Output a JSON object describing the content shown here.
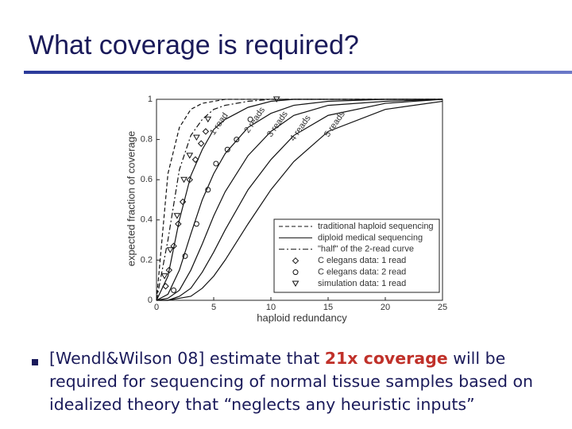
{
  "slide": {
    "title": "What coverage is required?",
    "bullet": [
      "[Wendl&Wilson 08] estimate that ",
      "21x coverage",
      " will be required for sequencing of normal tissue samples based on idealized theory that “neglects any heuristic inputs”"
    ]
  },
  "chart_data": {
    "type": "line",
    "xlabel": "haploid redundancy",
    "ylabel": "expected fraction of coverage",
    "xlim": [
      0,
      25
    ],
    "ylim": [
      0,
      1
    ],
    "xticks": [
      0,
      5,
      10,
      15,
      20,
      25
    ],
    "yticks": [
      0,
      0.2,
      0.4,
      0.6,
      0.8,
      1
    ],
    "x": [
      0,
      1,
      2,
      3,
      4,
      5,
      6,
      8,
      10,
      12,
      15,
      20,
      25
    ],
    "haploid": {
      "name": "traditional haploid sequencing",
      "dash": "dashed",
      "values": [
        0,
        0.63,
        0.86,
        0.95,
        0.98,
        0.99,
        1,
        1,
        1,
        1,
        1,
        1,
        1
      ]
    },
    "diploid": {
      "name": "diploid medical sequencing",
      "dash": "solid",
      "curves": [
        {
          "label": "1 read",
          "values": [
            0,
            0.12,
            0.4,
            0.62,
            0.75,
            0.85,
            0.9,
            0.96,
            0.99,
            1,
            1,
            1,
            1
          ]
        },
        {
          "label": "2 reads",
          "values": [
            0,
            0.03,
            0.15,
            0.33,
            0.5,
            0.63,
            0.73,
            0.86,
            0.93,
            0.97,
            0.99,
            1,
            1
          ]
        },
        {
          "label": "3 reads",
          "values": [
            0,
            0.01,
            0.05,
            0.15,
            0.28,
            0.42,
            0.54,
            0.72,
            0.84,
            0.92,
            0.97,
            0.99,
            1
          ]
        },
        {
          "label": "4 reads",
          "values": [
            0,
            0,
            0.02,
            0.06,
            0.14,
            0.24,
            0.35,
            0.55,
            0.7,
            0.82,
            0.92,
            0.98,
            1
          ]
        },
        {
          "label": "5 reads",
          "values": [
            0,
            0,
            0.01,
            0.02,
            0.06,
            0.12,
            0.2,
            0.38,
            0.55,
            0.69,
            0.84,
            0.95,
            0.99
          ]
        }
      ]
    },
    "half": {
      "name": "\"half\" of the 2-read curve",
      "dash": "dashdot",
      "values": [
        0,
        0.3,
        0.65,
        0.82,
        0.9,
        0.95,
        0.97,
        0.99,
        1,
        1,
        1,
        1,
        1
      ]
    },
    "scatter": [
      {
        "name": "C elegans data: 1 read",
        "marker": "diamond",
        "x": [
          0.8,
          1.1,
          1.5,
          1.9,
          2.3,
          2.9,
          3.4,
          3.9,
          4.3
        ],
        "values": [
          0.07,
          0.15,
          0.27,
          0.38,
          0.49,
          0.6,
          0.7,
          0.78,
          0.84
        ]
      },
      {
        "name": "C elegans data: 2 read",
        "marker": "circle",
        "x": [
          1.5,
          2.5,
          3.5,
          4.5,
          5.2,
          6.2,
          7,
          8.2
        ],
        "values": [
          0.05,
          0.22,
          0.38,
          0.55,
          0.68,
          0.75,
          0.8,
          0.9
        ]
      },
      {
        "name": "simulation data: 1 read",
        "marker": "triangle",
        "x": [
          0.7,
          1.2,
          1.8,
          2.4,
          2.9,
          3.5,
          4.5,
          10.5
        ],
        "values": [
          0.12,
          0.25,
          0.42,
          0.6,
          0.72,
          0.81,
          0.9,
          1
        ]
      }
    ]
  }
}
